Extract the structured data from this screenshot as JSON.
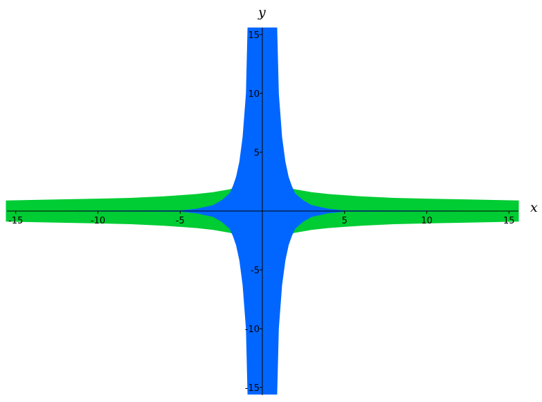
{
  "chart_data": {
    "type": "area",
    "title": "",
    "xlabel": "x",
    "ylabel": "y",
    "xlim": [
      -15.6,
      15.6
    ],
    "ylim": [
      -15.6,
      15.6
    ],
    "x_ticks": [
      -15,
      -10,
      -5,
      5,
      10,
      15
    ],
    "y_ticks": [
      -15,
      -10,
      -5,
      5,
      10,
      15
    ],
    "grid": false,
    "legend": "none",
    "series": [
      {
        "color": "#00cc33",
        "x": [
          -15.6,
          -12,
          -10,
          -8,
          -6,
          -5,
          -4,
          -3,
          -2,
          -1.5,
          1.5,
          2,
          3,
          4,
          5,
          6,
          8,
          10,
          12,
          15.6
        ],
        "upper": [
          0.9,
          1.0,
          1.05,
          1.12,
          1.25,
          1.35,
          1.45,
          1.6,
          1.85,
          2.0,
          2.0,
          1.85,
          1.6,
          1.45,
          1.35,
          1.25,
          1.12,
          1.05,
          1.0,
          0.9
        ],
        "lower": [
          -0.9,
          -1.0,
          -1.05,
          -1.12,
          -1.25,
          -1.35,
          -1.45,
          -1.6,
          -1.85,
          -2.0,
          -2.0,
          -1.85,
          -1.6,
          -1.45,
          -1.35,
          -1.25,
          -1.12,
          -1.05,
          -1.0,
          -0.9
        ]
      },
      {
        "color": "#0066ff",
        "x": [
          -15.6,
          -5,
          -4,
          -3,
          -2.5,
          -2,
          -1.8,
          -1.6,
          -1.4,
          -1.2,
          -1.0,
          -0.9,
          0.9,
          1.0,
          1.2,
          1.4,
          1.6,
          1.8,
          2,
          2.5,
          3,
          4,
          5,
          15.6
        ],
        "upper": [
          0.02,
          0.05,
          0.2,
          0.5,
          0.9,
          1.5,
          2.1,
          2.9,
          4.2,
          6.3,
          10.0,
          15.6,
          15.6,
          10.0,
          6.3,
          4.2,
          2.9,
          2.1,
          1.5,
          0.9,
          0.5,
          0.2,
          0.05,
          0.02
        ],
        "lower": [
          -0.02,
          -0.05,
          -0.2,
          -0.5,
          -0.9,
          -1.5,
          -2.1,
          -2.9,
          -4.2,
          -6.3,
          -10.0,
          -15.6,
          -15.6,
          -10.0,
          -6.3,
          -4.2,
          -2.9,
          -2.1,
          -1.5,
          -0.9,
          -0.5,
          -0.2,
          -0.05,
          -0.02
        ]
      }
    ]
  }
}
